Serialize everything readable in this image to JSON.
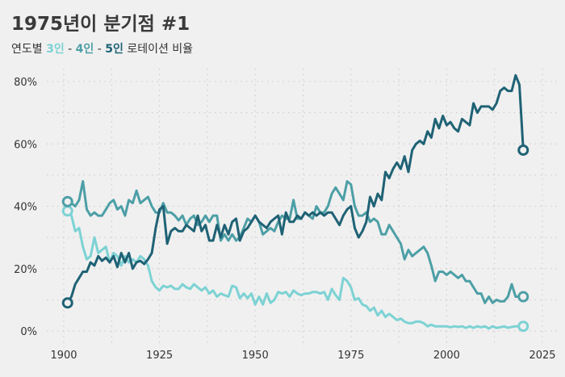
{
  "title": "1975년이 분기점 #1",
  "subtitle": {
    "prefix": "연도별 ",
    "s3": "3인",
    "dash1": " - ",
    "s4": "4인",
    "dash2": " - ",
    "s5": "5인",
    "suffix": " 로테이션 비율"
  },
  "chart_data": {
    "type": "line",
    "title": "1975년이 분기점 #1",
    "subtitle": "연도별 3인 - 4인 - 5인 로테이션 비율",
    "xlabel": "",
    "ylabel": "",
    "xlim": [
      1896,
      2026
    ],
    "ylim": [
      0,
      85
    ],
    "x_ticks": [
      1900,
      1925,
      1950,
      1975,
      2000,
      2025
    ],
    "y_ticks": [
      0,
      20,
      40,
      60,
      80
    ],
    "y_tick_labels": [
      "0%",
      "20%",
      "40%",
      "60%",
      "80%"
    ],
    "grid": true,
    "x": [
      1901,
      1902,
      1903,
      1904,
      1905,
      1906,
      1907,
      1908,
      1909,
      1910,
      1911,
      1912,
      1913,
      1914,
      1915,
      1916,
      1917,
      1918,
      1919,
      1920,
      1921,
      1922,
      1923,
      1924,
      1925,
      1926,
      1927,
      1928,
      1929,
      1930,
      1931,
      1932,
      1933,
      1934,
      1935,
      1936,
      1937,
      1938,
      1939,
      1940,
      1941,
      1942,
      1943,
      1944,
      1945,
      1946,
      1947,
      1948,
      1949,
      1950,
      1951,
      1952,
      1953,
      1954,
      1955,
      1956,
      1957,
      1958,
      1959,
      1960,
      1961,
      1962,
      1963,
      1964,
      1965,
      1966,
      1967,
      1968,
      1969,
      1970,
      1971,
      1972,
      1973,
      1974,
      1975,
      1976,
      1977,
      1978,
      1979,
      1980,
      1981,
      1982,
      1983,
      1984,
      1985,
      1986,
      1987,
      1988,
      1989,
      1990,
      1991,
      1992,
      1993,
      1994,
      1995,
      1996,
      1997,
      1998,
      1999,
      2000,
      2001,
      2002,
      2003,
      2004,
      2005,
      2006,
      2007,
      2008,
      2009,
      2010,
      2011,
      2012,
      2013,
      2014,
      2015,
      2016,
      2017,
      2018,
      2019,
      2020
    ],
    "series": [
      {
        "name": "3인",
        "color": "#7dd2d4",
        "values": [
          38.5,
          37,
          32,
          33,
          27,
          23,
          24,
          30,
          25,
          26,
          27,
          22,
          25,
          24,
          21,
          24,
          22,
          23,
          22,
          24,
          23,
          21,
          16,
          14,
          13,
          14.5,
          14,
          14.5,
          13.5,
          13.5,
          15,
          14,
          13.5,
          15,
          14,
          13,
          14,
          12,
          13,
          11,
          12,
          11.5,
          11,
          14.5,
          14,
          10.5,
          12,
          10.5,
          12,
          8.5,
          11,
          8.5,
          12,
          9,
          10,
          12.5,
          12,
          12.5,
          11,
          13,
          12,
          11.5,
          12,
          12,
          12.5,
          12.5,
          12,
          12.5,
          10,
          13.5,
          11.5,
          10,
          17,
          16,
          14,
          10,
          10.5,
          8.5,
          8,
          6.5,
          7.5,
          5,
          6.5,
          4.5,
          5.5,
          4.5,
          3.5,
          4,
          3,
          2.5,
          2.5,
          3,
          3,
          2.5,
          1.5,
          2,
          1.5,
          1.5,
          1.5,
          1.5,
          1.2,
          1.5,
          1.3,
          1.5,
          1,
          1.5,
          1,
          1.5,
          1.2,
          1.5,
          0.8,
          1.5,
          1,
          1.2,
          1.5,
          1,
          1.3,
          1.5,
          1.5,
          1.5
        ],
        "end_marker": true
      },
      {
        "name": "4인",
        "color": "#4d9fa6",
        "values": [
          41.5,
          41,
          40,
          42,
          48,
          39,
          37,
          38,
          37,
          37,
          39,
          41,
          42,
          39,
          40,
          37,
          42,
          41,
          45,
          41,
          42,
          43,
          40,
          38,
          38,
          41,
          38,
          38,
          37,
          35.5,
          37,
          34,
          36,
          37,
          34,
          35,
          37,
          35,
          37,
          37,
          29,
          31,
          29,
          31,
          29,
          30,
          33,
          36,
          35,
          37,
          35,
          31,
          32,
          33,
          32,
          35,
          37,
          36,
          36,
          42,
          36,
          36,
          38,
          37,
          36,
          40,
          38,
          38,
          40,
          44,
          46,
          44,
          42,
          48,
          47,
          40,
          37,
          37,
          38,
          35,
          36,
          35,
          31,
          31,
          34,
          32,
          30,
          28,
          23,
          26,
          24,
          25,
          26,
          27,
          25,
          21,
          16,
          19,
          19,
          18,
          19,
          18,
          17,
          18,
          16,
          16,
          14,
          12,
          12,
          9,
          11,
          9,
          10,
          9.5,
          9.5,
          11,
          15,
          11,
          11,
          11
        ],
        "end_marker": true
      },
      {
        "name": "5인",
        "color": "#1f6275",
        "values": [
          9,
          11,
          15,
          17,
          19,
          19,
          22,
          21,
          24,
          22.5,
          23.5,
          22,
          24,
          20.5,
          25,
          22,
          25,
          20,
          22,
          22.5,
          21.5,
          23,
          25,
          33,
          39,
          40,
          28,
          32,
          33,
          32,
          32,
          34,
          33,
          32,
          37,
          32,
          34,
          29,
          29,
          34,
          30,
          34,
          31,
          35,
          36,
          29,
          32,
          33,
          35,
          37,
          35,
          34,
          33,
          35,
          36,
          37,
          31,
          38,
          35,
          35,
          37,
          36,
          38,
          37,
          38,
          37,
          38,
          37,
          38,
          38,
          36,
          34,
          37,
          39,
          40,
          33,
          30,
          32,
          35,
          43,
          40,
          44,
          42,
          51,
          49,
          52,
          54,
          52,
          56,
          51,
          58,
          60,
          61,
          60,
          64,
          62,
          68,
          65,
          69,
          66,
          67,
          65,
          64,
          68,
          67,
          66,
          73,
          70,
          72,
          72,
          72,
          71,
          73,
          77,
          78,
          77,
          77,
          82,
          79,
          58
        ]
      }
    ]
  }
}
